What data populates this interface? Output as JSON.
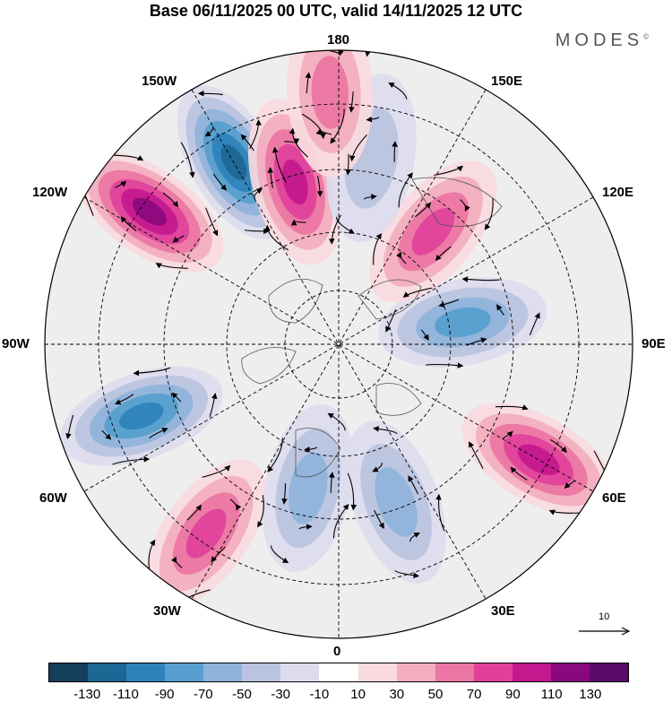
{
  "title": "Base 06/11/2025 00 UTC, valid 14/11/2025 12 UTC",
  "brand": "MODES",
  "brand_mark": "©",
  "longitude_labels": {
    "top": "180",
    "bottom": "0",
    "left": "90W",
    "right": "90E",
    "upper_left_1": "150W",
    "upper_left_2": "120W",
    "lower_left_1": "60W",
    "lower_left_2": "30W",
    "upper_right_1": "150E",
    "upper_right_2": "120E",
    "lower_right_1": "60E",
    "lower_right_2": "30E"
  },
  "reference_vector": {
    "label": "10"
  },
  "colorbar": {
    "colors": [
      "#163e5d",
      "#1d6794",
      "#2e82bb",
      "#569fce",
      "#8fb3da",
      "#bac3df",
      "#dcdcee",
      "#ffffff",
      "#f8dadf",
      "#f2adbe",
      "#eb75a3",
      "#e0409b",
      "#c3188e",
      "#8a087e",
      "#5a0a6a"
    ],
    "tick_labels": [
      "-130",
      "-110",
      "-90",
      "-70",
      "-50",
      "-30",
      "-10",
      "10",
      "30",
      "50",
      "70",
      "90",
      "110",
      "130"
    ]
  },
  "anomaly_centers": [
    {
      "lon": -150,
      "lat": 40,
      "value": -110
    },
    {
      "lon": -165,
      "lat": 50,
      "value": 100
    },
    {
      "lon": -125,
      "lat": 35,
      "value": 120
    },
    {
      "lon": -70,
      "lat": 40,
      "value": -90
    },
    {
      "lon": -35,
      "lat": 35,
      "value": 80
    },
    {
      "lon": -12,
      "lat": 55,
      "value": -60
    },
    {
      "lon": 20,
      "lat": 50,
      "value": -60
    },
    {
      "lon": 60,
      "lat": 35,
      "value": 90
    },
    {
      "lon": 100,
      "lat": 60,
      "value": -70
    },
    {
      "lon": 140,
      "lat": 55,
      "value": 70
    },
    {
      "lon": 170,
      "lat": 45,
      "value": -40
    },
    {
      "lon": -178,
      "lat": 30,
      "value": 50
    }
  ]
}
